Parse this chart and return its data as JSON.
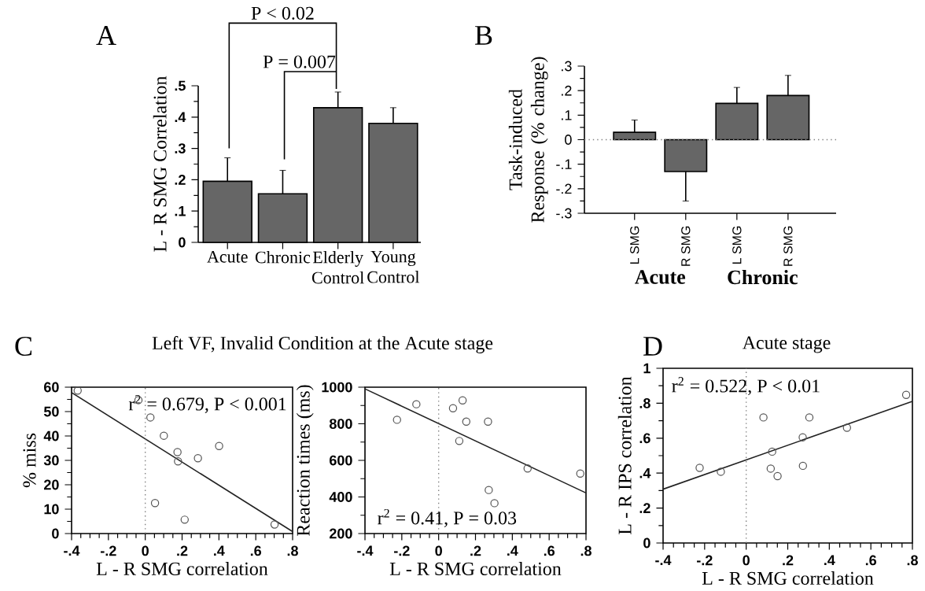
{
  "chart_data": [
    {
      "type": "bar",
      "categories": [
        "Acute",
        "Chronic",
        "Elderly Control",
        "Young Control"
      ],
      "values": [
        0.195,
        0.155,
        0.43,
        0.38
      ],
      "errors": [
        [
          0.195,
          0.27
        ],
        [
          0.155,
          0.23
        ],
        [
          0.43,
          0.48
        ],
        [
          0.38,
          0.43
        ]
      ],
      "color": "#666666",
      "ylabel": "L - R SMG Correlation",
      "ylim": [
        0,
        0.5
      ],
      "yticks": [
        0,
        {
          "value": 0.1,
          "label": ".1"
        },
        {
          "value": 0.2,
          "label": ".2"
        },
        {
          "value": 0.3,
          "label": ".3"
        },
        {
          "value": 0.4,
          "label": ".4"
        },
        {
          "value": 0.5,
          "label": ".5"
        }
      ],
      "annotations": [
        "A",
        "P < 0.02",
        "P = 0.007"
      ]
    },
    {
      "type": "bar",
      "categories": [
        "L SMG",
        "R SMG",
        "L SMG",
        "R SMG"
      ],
      "values": [
        0.03,
        -0.13,
        0.148,
        0.18
      ],
      "errors": [
        [
          0.03,
          0.08
        ],
        [
          -0.25,
          -0.13
        ],
        [
          0.148,
          0.213
        ],
        [
          0.18,
          0.262
        ]
      ],
      "color": "#666666",
      "ylabel": "Task-induced Response (% change)",
      "ylim": [
        -0.3,
        0.3
      ],
      "yticks": [
        {
          "value": -0.3,
          "label": "-.3"
        },
        {
          "value": -0.2,
          "label": "-.2"
        },
        {
          "value": -0.1,
          "label": "-.1"
        },
        0,
        {
          "value": 0.1,
          "label": ".1"
        },
        {
          "value": 0.2,
          "label": ".2"
        },
        {
          "value": 0.3,
          "label": ".3"
        }
      ],
      "ref_lines": [
        {
          "axis": "y",
          "value": 0,
          "color": "#808080",
          "line_style": "dotted"
        }
      ],
      "annotations": [
        "B",
        "Acute",
        "Chronic"
      ]
    },
    {
      "type": "scatter",
      "title": "Left VF, Invalid Condition at the Acute stage",
      "xlabel": "L - R SMG correlation",
      "ylabel": "% miss",
      "marker": "circle",
      "xlim": [
        -0.4,
        0.8
      ],
      "xticks": [
        {
          "value": -0.4,
          "label": "-.4"
        },
        {
          "value": -0.2,
          "label": "-.2"
        },
        0,
        {
          "value": 0.2,
          "label": ".2"
        },
        {
          "value": 0.4,
          "label": ".4"
        },
        {
          "value": 0.6,
          "label": ".6"
        },
        {
          "value": 0.8,
          "label": ".8"
        }
      ],
      "ylim": [
        0,
        60
      ],
      "yticks": [
        0,
        10,
        20,
        30,
        40,
        50,
        60
      ],
      "ref_lines": [
        {
          "axis": "x",
          "value": 0,
          "color": "#808080",
          "line_style": "dotted"
        }
      ],
      "series": [
        {
          "type": "scatter",
          "color": "#555555",
          "x": [
            -0.367,
            -0.037,
            0.028,
            0.101,
            0.175,
            0.178,
            0.286,
            0.401,
            0.053,
            0.214,
            0.702
          ],
          "values": [
            58.6,
            54.7,
            47.6,
            40.1,
            33.4,
            29.6,
            30.9,
            35.9,
            12.5,
            5.7,
            3.7
          ]
        },
        {
          "type": "line",
          "color": "#222222",
          "marker": "none",
          "x": [
            -0.4,
            0.8
          ],
          "values": [
            57.8,
            0.8
          ]
        }
      ],
      "annotations": [
        "C",
        "r$^{2}$ = 0.679, P < 0.001"
      ]
    },
    {
      "type": "scatter",
      "xlabel": "L - R SMG correlation",
      "ylabel": "Reaction times (ms)",
      "marker": "circle",
      "xlim": [
        -0.4,
        0.8
      ],
      "xticks": [
        {
          "value": -0.4,
          "label": "-.4"
        },
        {
          "value": -0.2,
          "label": "-.2"
        },
        0,
        {
          "value": 0.2,
          "label": ".2"
        },
        {
          "value": 0.4,
          "label": ".4"
        },
        {
          "value": 0.6,
          "label": ".6"
        },
        {
          "value": 0.8,
          "label": ".8"
        }
      ],
      "ylim": [
        200,
        1000
      ],
      "yticks": [
        200,
        400,
        600,
        800,
        1000
      ],
      "ref_lines": [
        {
          "axis": "x",
          "value": 0,
          "color": "#808080",
          "line_style": "dotted"
        }
      ],
      "series": [
        {
          "type": "scatter",
          "color": "#555555",
          "x": [
            -0.226,
            -0.121,
            0.078,
            0.13,
            0.15,
            0.112,
            0.268,
            0.483,
            0.769,
            0.272,
            0.303
          ],
          "values": [
            822,
            907,
            885,
            928,
            812,
            706,
            812,
            556,
            528,
            438,
            366
          ]
        },
        {
          "type": "line",
          "color": "#222222",
          "marker": "none",
          "x": [
            -0.4,
            0.8
          ],
          "values": [
            991,
            422
          ]
        }
      ],
      "annotations": [
        "r$^{2}$ = 0.41, P = 0.03"
      ]
    },
    {
      "type": "scatter",
      "title": "Acute stage",
      "xlabel": "L - R SMG correlation",
      "ylabel": "L - R IPS correlation",
      "marker": "circle",
      "xlim": [
        -0.4,
        0.8
      ],
      "xticks": [
        {
          "value": -0.4,
          "label": "-.4"
        },
        {
          "value": -0.2,
          "label": "-.2"
        },
        0,
        {
          "value": 0.2,
          "label": ".2"
        },
        {
          "value": 0.4,
          "label": ".4"
        },
        {
          "value": 0.6,
          "label": ".6"
        },
        {
          "value": 0.8,
          "label": ".8"
        }
      ],
      "ylim": [
        0,
        1
      ],
      "yticks": [
        0,
        {
          "value": 0.2,
          "label": ".2"
        },
        {
          "value": 0.4,
          "label": ".4"
        },
        {
          "value": 0.6,
          "label": ".6"
        },
        {
          "value": 0.8,
          "label": ".8"
        },
        1
      ],
      "ref_lines": [
        {
          "axis": "x",
          "value": 0,
          "color": "#808080",
          "line_style": "dotted"
        }
      ],
      "series": [
        {
          "type": "scatter",
          "color": "#555555",
          "x": [
            -0.224,
            -0.122,
            0.083,
            0.118,
            0.125,
            0.151,
            0.272,
            0.273,
            0.304,
            0.485,
            0.77
          ],
          "values": [
            0.43,
            0.408,
            0.719,
            0.426,
            0.523,
            0.383,
            0.605,
            0.442,
            0.719,
            0.66,
            0.848
          ]
        },
        {
          "type": "line",
          "color": "#222222",
          "marker": "none",
          "x": [
            -0.4,
            0.8
          ],
          "values": [
            0.308,
            0.811
          ]
        }
      ],
      "annotations": [
        "D",
        "r$^{2}$ = 0.522, P < 0.01"
      ]
    }
  ]
}
